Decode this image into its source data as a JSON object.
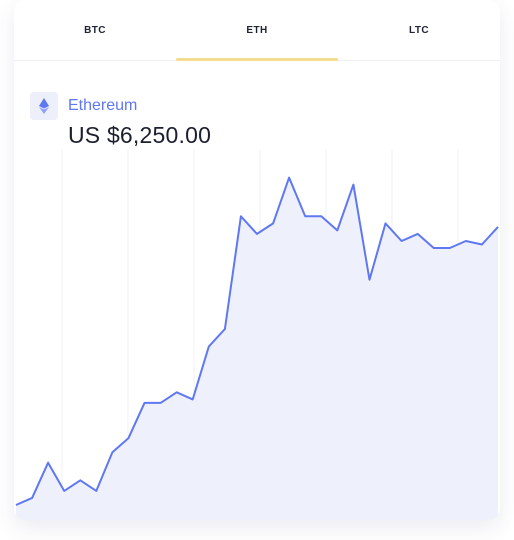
{
  "tabs": [
    {
      "label": "BTC",
      "active": false
    },
    {
      "label": "ETH",
      "active": true
    },
    {
      "label": "LTC",
      "active": false
    }
  ],
  "asset": {
    "icon": "ethereum-icon",
    "name": "Ethereum",
    "price": "US $6,250.00"
  },
  "colors": {
    "accent": "#5f78f2",
    "tab_underline": "#f6dc8f",
    "area_fill": "#eef0fc",
    "text_dark": "#1b1f2e"
  },
  "chart_data": {
    "type": "area",
    "values": [
      2,
      4,
      14,
      6,
      9,
      6,
      17,
      21,
      31,
      31,
      34,
      32,
      47,
      52,
      84,
      79,
      82,
      95,
      84,
      84,
      80,
      93,
      66,
      82,
      77,
      79,
      75,
      75,
      77,
      76,
      81
    ],
    "ylim": [
      0,
      100
    ],
    "grid": true,
    "gridlines": "vertical"
  }
}
